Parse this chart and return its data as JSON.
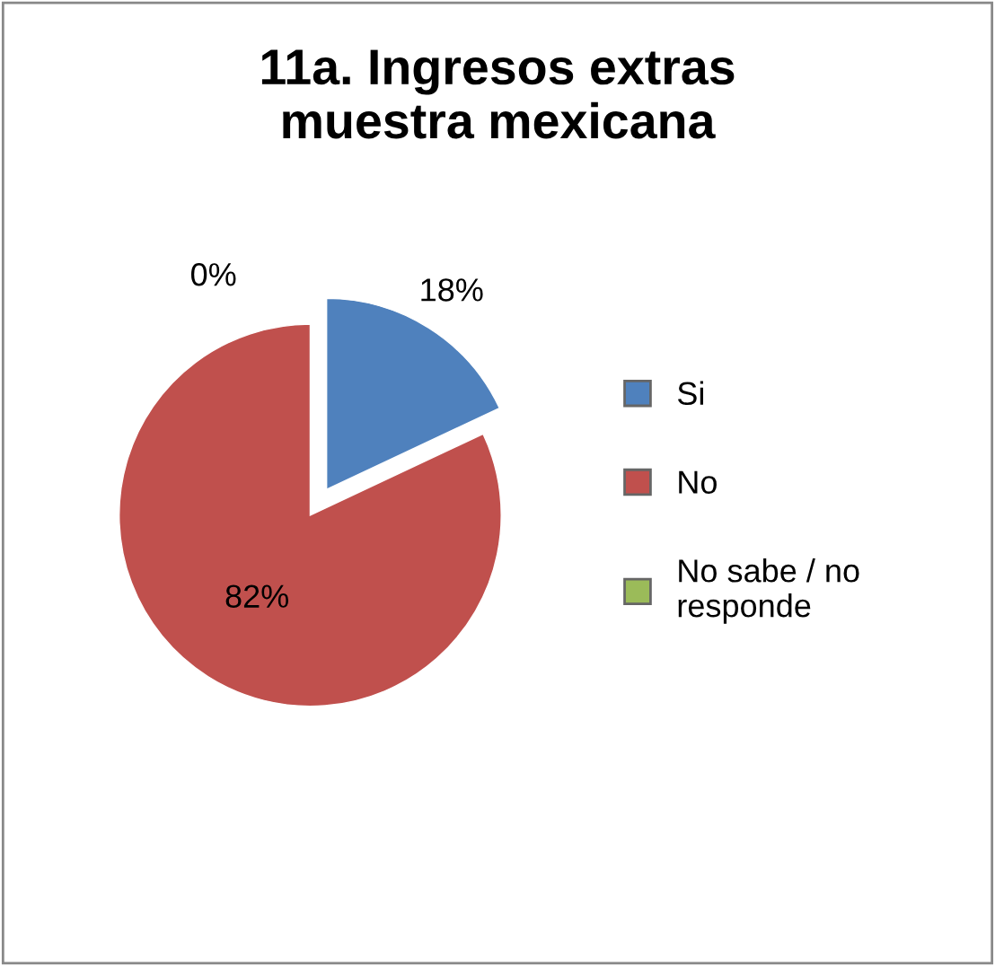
{
  "chart_data": {
    "type": "pie",
    "title": "11a. Ingresos extras\nmuestra mexicana",
    "categories": [
      "Si",
      "No",
      "No sabe / no responde"
    ],
    "values": [
      18,
      82,
      0
    ],
    "colors": [
      "#4f81bd",
      "#c0504d",
      "#9bbb59"
    ],
    "value_labels": [
      "18%",
      "82%",
      "0%"
    ],
    "legend": "right"
  }
}
